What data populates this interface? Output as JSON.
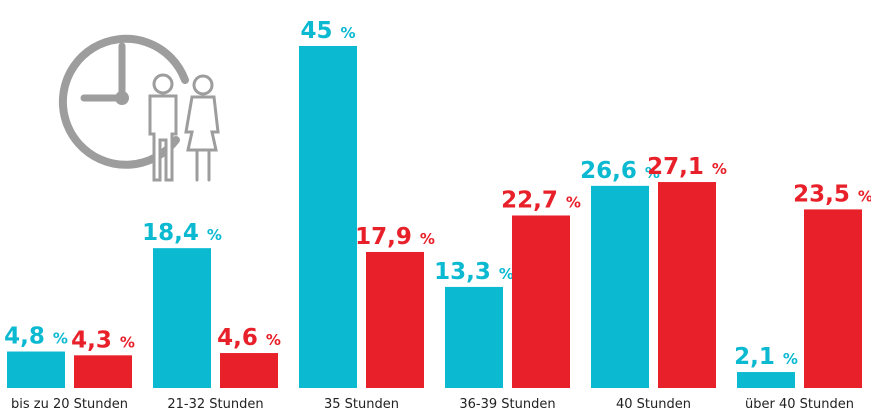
{
  "chart_data": {
    "type": "bar",
    "categories": [
      "bis zu 20 Stunden",
      "21-32 Stunden",
      "35 Stunden",
      "36-39 Stunden",
      "40 Stunden",
      "über 40 Stunden"
    ],
    "series": [
      {
        "color": "#0bb9d1",
        "values": [
          4.8,
          18.4,
          45,
          13.3,
          26.6,
          2.1
        ],
        "value_labels": [
          "4,8 %",
          "18,4 %",
          "45 %",
          "13,3 %",
          "26,6 %",
          "2,1 %"
        ]
      },
      {
        "color": "#e8202a",
        "values": [
          4.3,
          4.6,
          17.9,
          22.7,
          27.1,
          23.5
        ],
        "value_labels": [
          "4,3 %",
          "4,6 %",
          "17,9 %",
          "22,7 %",
          "27,1 %",
          "23,5 %"
        ]
      }
    ]
  }
}
